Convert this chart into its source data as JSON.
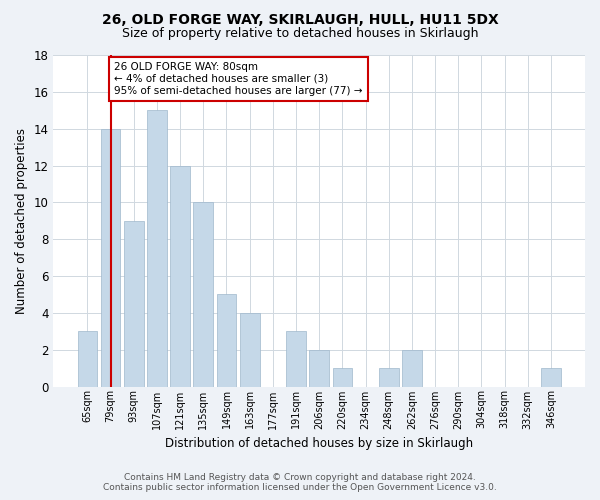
{
  "title_line1": "26, OLD FORGE WAY, SKIRLAUGH, HULL, HU11 5DX",
  "title_line2": "Size of property relative to detached houses in Skirlaugh",
  "xlabel": "Distribution of detached houses by size in Skirlaugh",
  "ylabel": "Number of detached properties",
  "categories": [
    "65sqm",
    "79sqm",
    "93sqm",
    "107sqm",
    "121sqm",
    "135sqm",
    "149sqm",
    "163sqm",
    "177sqm",
    "191sqm",
    "206sqm",
    "220sqm",
    "234sqm",
    "248sqm",
    "262sqm",
    "276sqm",
    "290sqm",
    "304sqm",
    "318sqm",
    "332sqm",
    "346sqm"
  ],
  "values": [
    3,
    14,
    9,
    15,
    12,
    10,
    5,
    4,
    0,
    3,
    2,
    1,
    0,
    1,
    2,
    0,
    0,
    0,
    0,
    0,
    1
  ],
  "bar_color": "#c5d8e8",
  "bar_edge_color": "#a0b8cc",
  "ylim": [
    0,
    18
  ],
  "yticks": [
    0,
    2,
    4,
    6,
    8,
    10,
    12,
    14,
    16,
    18
  ],
  "vline_x_index": 1,
  "vline_color": "#cc0000",
  "annotation_text": "26 OLD FORGE WAY: 80sqm\n← 4% of detached houses are smaller (3)\n95% of semi-detached houses are larger (77) →",
  "annotation_box_color": "#cc0000",
  "footer_line1": "Contains HM Land Registry data © Crown copyright and database right 2024.",
  "footer_line2": "Contains public sector information licensed under the Open Government Licence v3.0.",
  "bg_color": "#eef2f7",
  "plot_bg_color": "#ffffff",
  "grid_color": "#d0d8e0"
}
